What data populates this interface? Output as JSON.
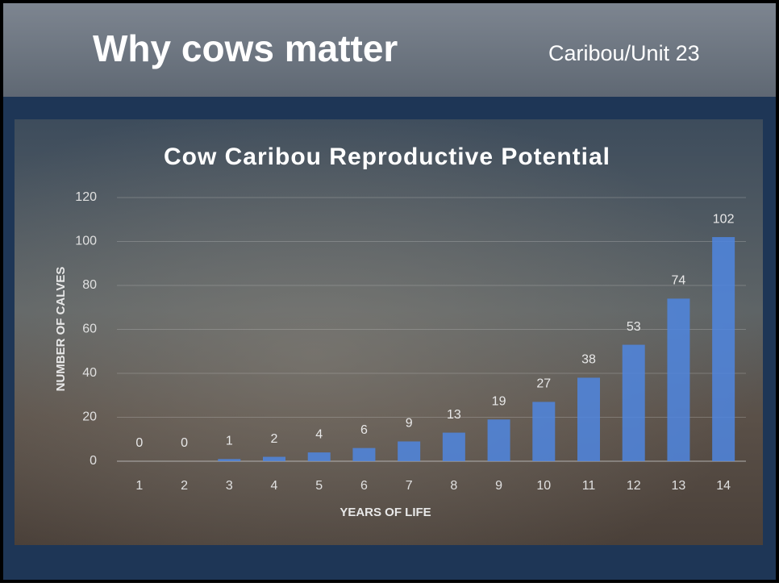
{
  "slide": {
    "title": "Why cows matter",
    "tag": "Caribou/Unit 23"
  },
  "chart_data": {
    "type": "bar",
    "title": "Cow Caribou Reproductive Potential",
    "x_label": "YEARS OF LIFE",
    "y_label": "NUMBER OF CALVES",
    "categories": [
      "1",
      "2",
      "3",
      "4",
      "5",
      "6",
      "7",
      "8",
      "9",
      "10",
      "11",
      "12",
      "13",
      "14"
    ],
    "values": [
      0,
      0,
      1,
      2,
      4,
      6,
      9,
      13,
      19,
      27,
      38,
      53,
      74,
      102
    ],
    "color": "#4f86e0",
    "ylim": [
      0,
      120
    ],
    "yticks": [
      0,
      20,
      40,
      60,
      80,
      100,
      120
    ],
    "grid": true
  }
}
